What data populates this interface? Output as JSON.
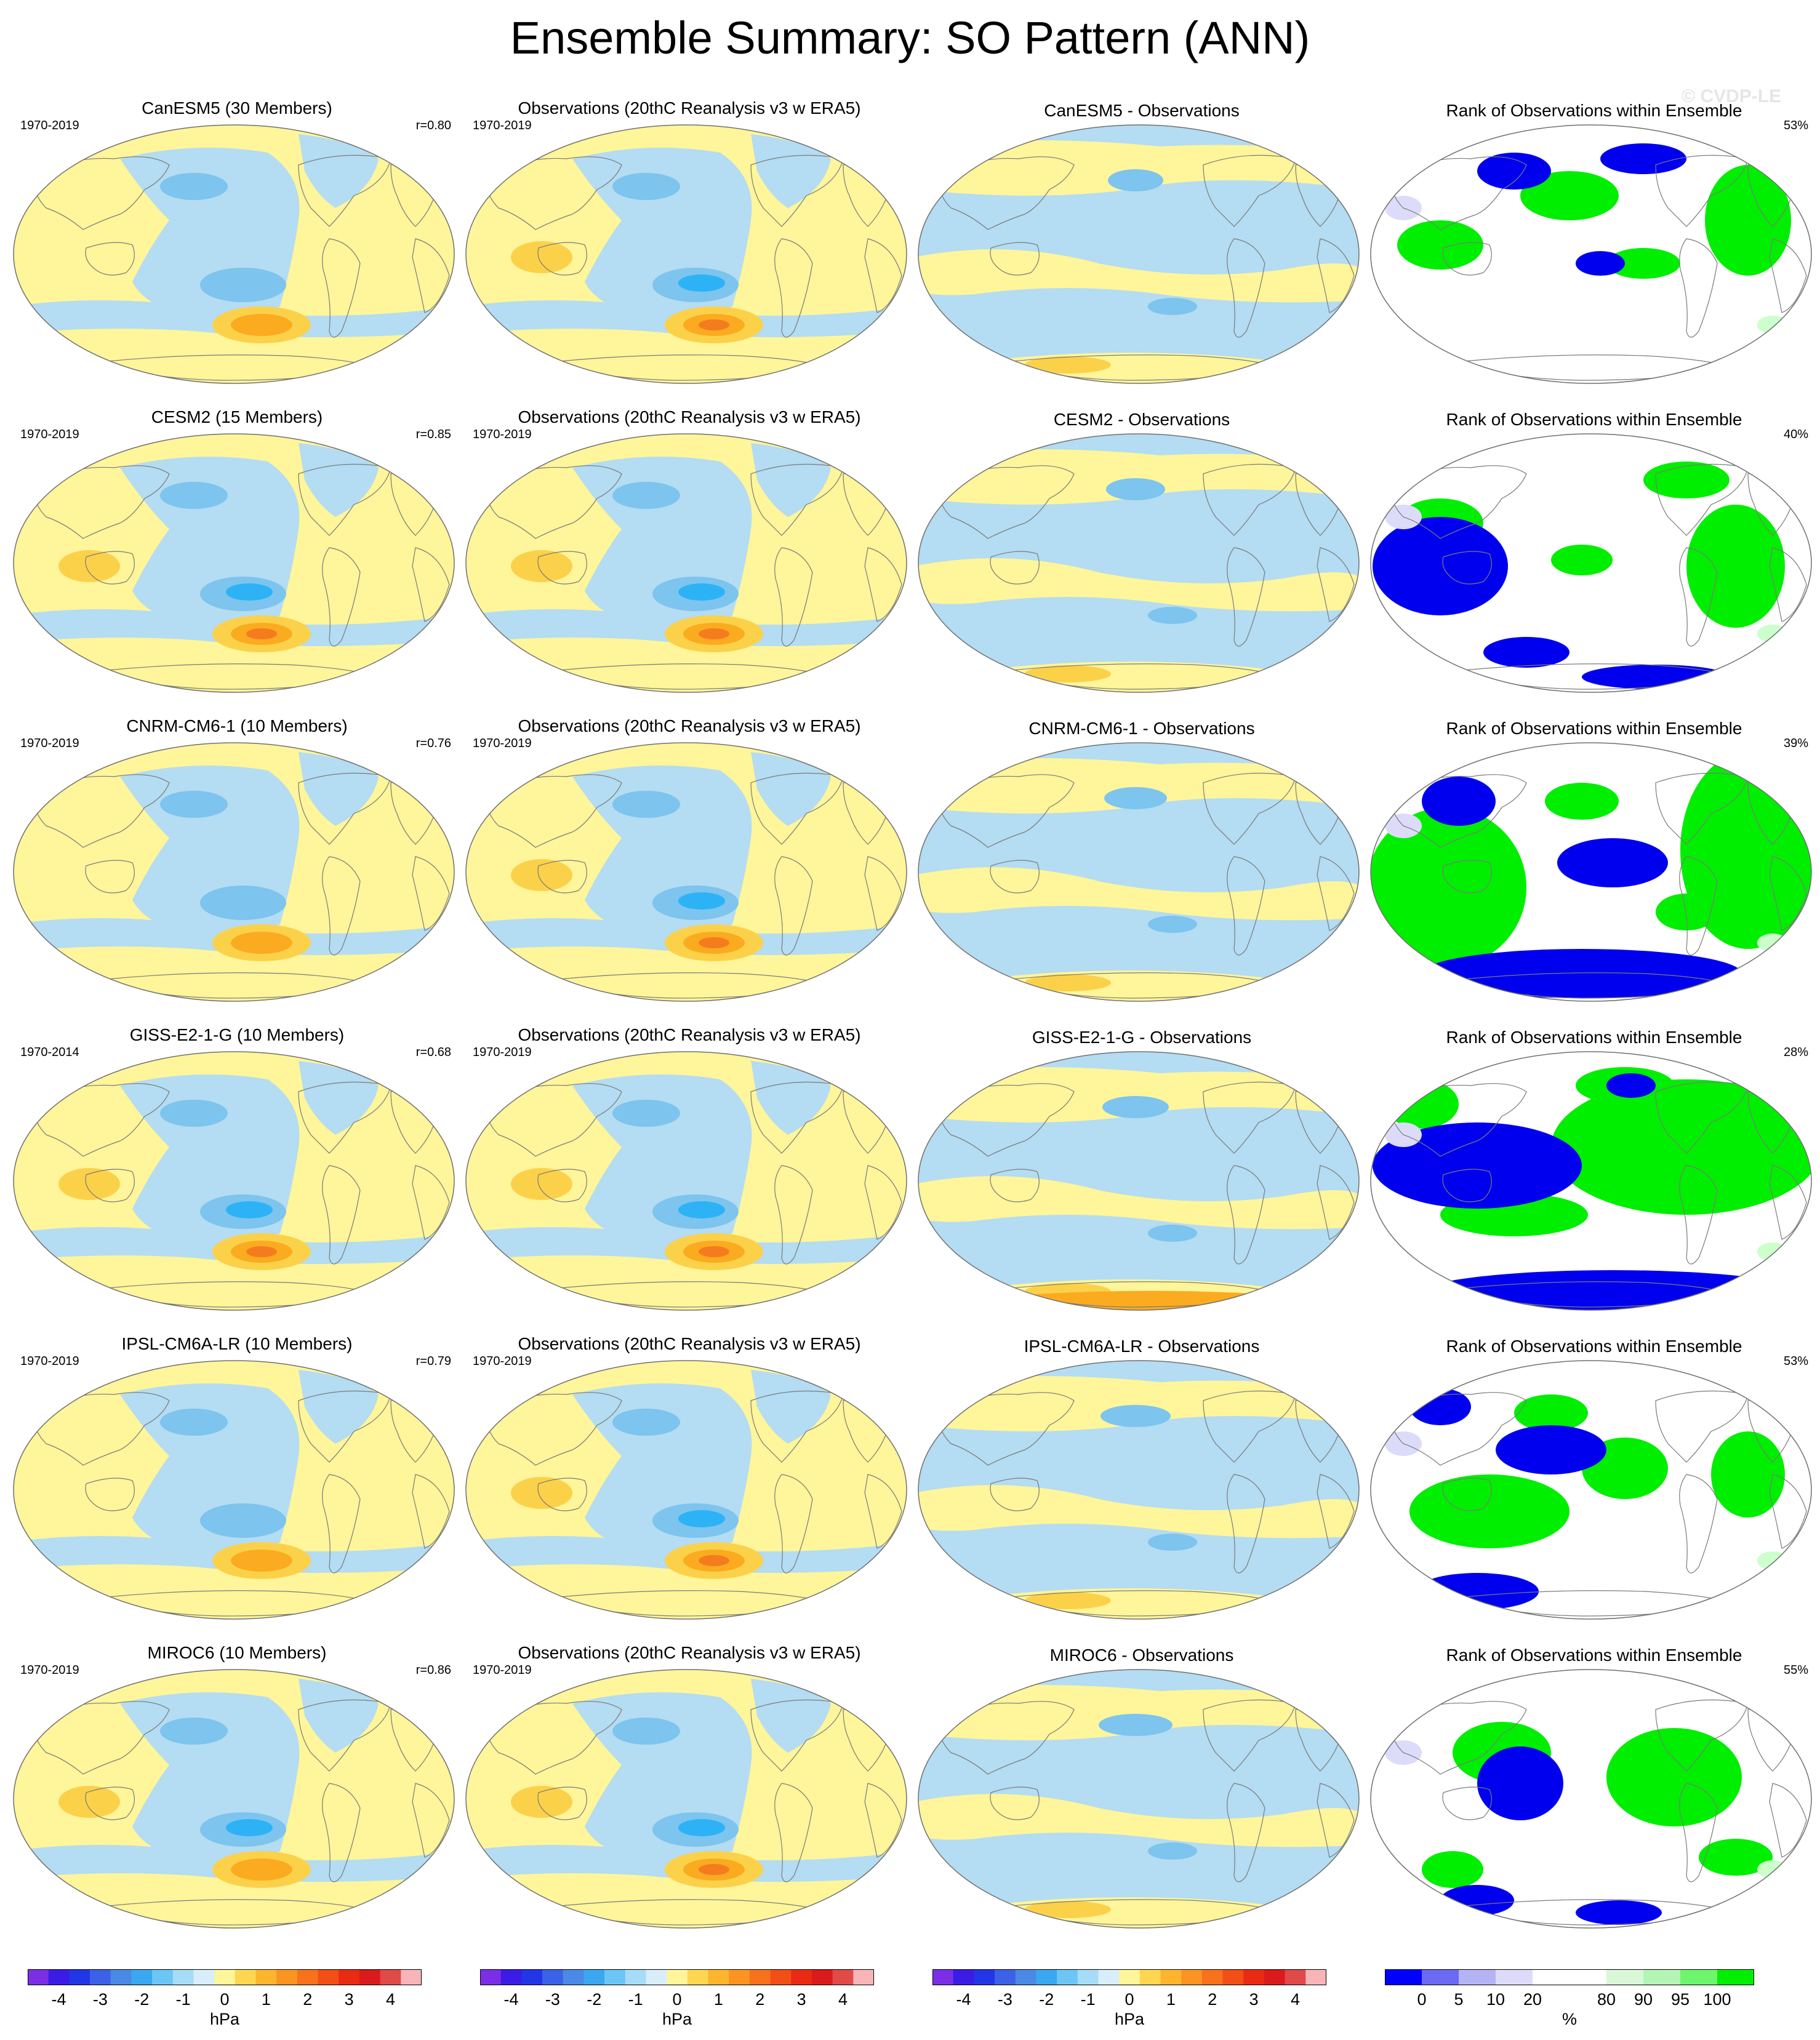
{
  "title": "Ensemble Summary: SO Pattern (ANN)",
  "watermark": "© CVDP-LE",
  "colors": {
    "yellow": "#fff59a",
    "light_blue": "#b4dcf2",
    "mid_blue": "#7dc4ee",
    "deep_blue": "#2db3f5",
    "orange_light": "#fcd14a",
    "orange_mid": "#fbab20",
    "orange_deep": "#f57c1e",
    "rank_blue": "#0000ee",
    "rank_green": "#00ee00",
    "rank_light_blue": "#dcdcfa",
    "rank_light_green": "#ccffcc",
    "map_edge": "#707070"
  },
  "rows": [
    {
      "model": {
        "title": "CanESM5 (30 Members)",
        "years": "1970-2019",
        "corr": "r=0.80",
        "style": "canesm5"
      },
      "obs": {
        "title": "Observations (20thC Reanalysis v3 w ERA5)",
        "years": "1970-2019"
      },
      "diff": {
        "title": "CanESM5 - Observations"
      },
      "rank": {
        "title": "Rank of Observations within Ensemble",
        "pct": "53%"
      }
    },
    {
      "model": {
        "title": "CESM2 (15 Members)",
        "years": "1970-2019",
        "corr": "r=0.85",
        "style": "cesm2"
      },
      "obs": {
        "title": "Observations (20thC Reanalysis v3 w ERA5)",
        "years": "1970-2019"
      },
      "diff": {
        "title": "CESM2 - Observations"
      },
      "rank": {
        "title": "Rank of Observations within Ensemble",
        "pct": "40%"
      }
    },
    {
      "model": {
        "title": "CNRM-CM6-1 (10 Members)",
        "years": "1970-2019",
        "corr": "r=0.76",
        "style": "cnrm"
      },
      "obs": {
        "title": "Observations (20thC Reanalysis v3 w ERA5)",
        "years": "1970-2019"
      },
      "diff": {
        "title": "CNRM-CM6-1 - Observations"
      },
      "rank": {
        "title": "Rank of Observations within Ensemble",
        "pct": "39%"
      }
    },
    {
      "model": {
        "title": "GISS-E2-1-G (10 Members)",
        "years": "1970-2014",
        "corr": "r=0.68",
        "style": "giss"
      },
      "obs": {
        "title": "Observations (20thC Reanalysis v3 w ERA5)",
        "years": "1970-2019"
      },
      "diff": {
        "title": "GISS-E2-1-G - Observations"
      },
      "rank": {
        "title": "Rank of Observations within Ensemble",
        "pct": "28%"
      }
    },
    {
      "model": {
        "title": "IPSL-CM6A-LR (10 Members)",
        "years": "1970-2019",
        "corr": "r=0.79",
        "style": "ipsl"
      },
      "obs": {
        "title": "Observations (20thC Reanalysis v3 w ERA5)",
        "years": "1970-2019"
      },
      "diff": {
        "title": "IPSL-CM6A-LR - Observations"
      },
      "rank": {
        "title": "Rank of Observations within Ensemble",
        "pct": "53%"
      }
    },
    {
      "model": {
        "title": "MIROC6 (10 Members)",
        "years": "1970-2019",
        "corr": "r=0.86",
        "style": "miroc6"
      },
      "obs": {
        "title": "Observations (20thC Reanalysis v3 w ERA5)",
        "years": "1970-2019"
      },
      "diff": {
        "title": "MIROC6 - Observations"
      },
      "rank": {
        "title": "Rank of Observations within Ensemble",
        "pct": "55%"
      }
    }
  ],
  "hpa_colorbar": {
    "unit": "hPa",
    "labels": [
      "-4",
      "-3",
      "-2",
      "-1",
      "0",
      "1",
      "2",
      "3",
      "4"
    ],
    "colors": [
      "#7b2ee6",
      "#3a1ce6",
      "#2336e6",
      "#3b62e6",
      "#4a8ae6",
      "#39a8f0",
      "#6cc6f5",
      "#a6dcf7",
      "#d8eefa",
      "#fff59a",
      "#fed650",
      "#fdb52e",
      "#fb9420",
      "#f7721b",
      "#f24f16",
      "#ea2a13",
      "#da1b1b",
      "#e04a48",
      "#f7b5b8"
    ]
  },
  "pct_colorbar": {
    "unit": "%",
    "labels": [
      "0",
      "5",
      "10",
      "20",
      "80",
      "90",
      "95",
      "100"
    ],
    "colors": [
      "#0000ff",
      "#6a6af5",
      "#b4b4f5",
      "#dcdcfa",
      "#ffffff",
      "#ffffff",
      "#d8f8d8",
      "#b4f5b4",
      "#6ef56e",
      "#00ee00"
    ]
  }
}
